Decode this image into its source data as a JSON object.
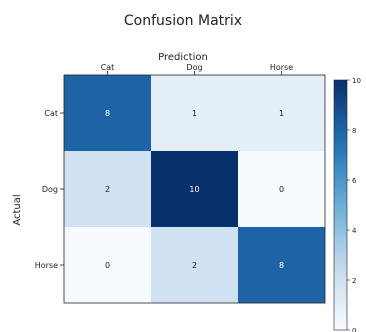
{
  "chart_data": {
    "type": "heatmap",
    "title": "Confusion Matrix",
    "xlabel": "Prediction",
    "ylabel": "Actual",
    "x_categories": [
      "Cat",
      "Dog",
      "Horse"
    ],
    "y_categories": [
      "Cat",
      "Dog",
      "Horse"
    ],
    "values": [
      [
        8,
        1,
        1
      ],
      [
        2,
        10,
        0
      ],
      [
        0,
        2,
        8
      ]
    ],
    "colorbar": {
      "range": [
        0,
        10
      ],
      "ticks": [
        "10",
        "8",
        "6",
        "4",
        "2",
        "0"
      ],
      "colormap": "Blues"
    },
    "x_axis_position": "top"
  }
}
